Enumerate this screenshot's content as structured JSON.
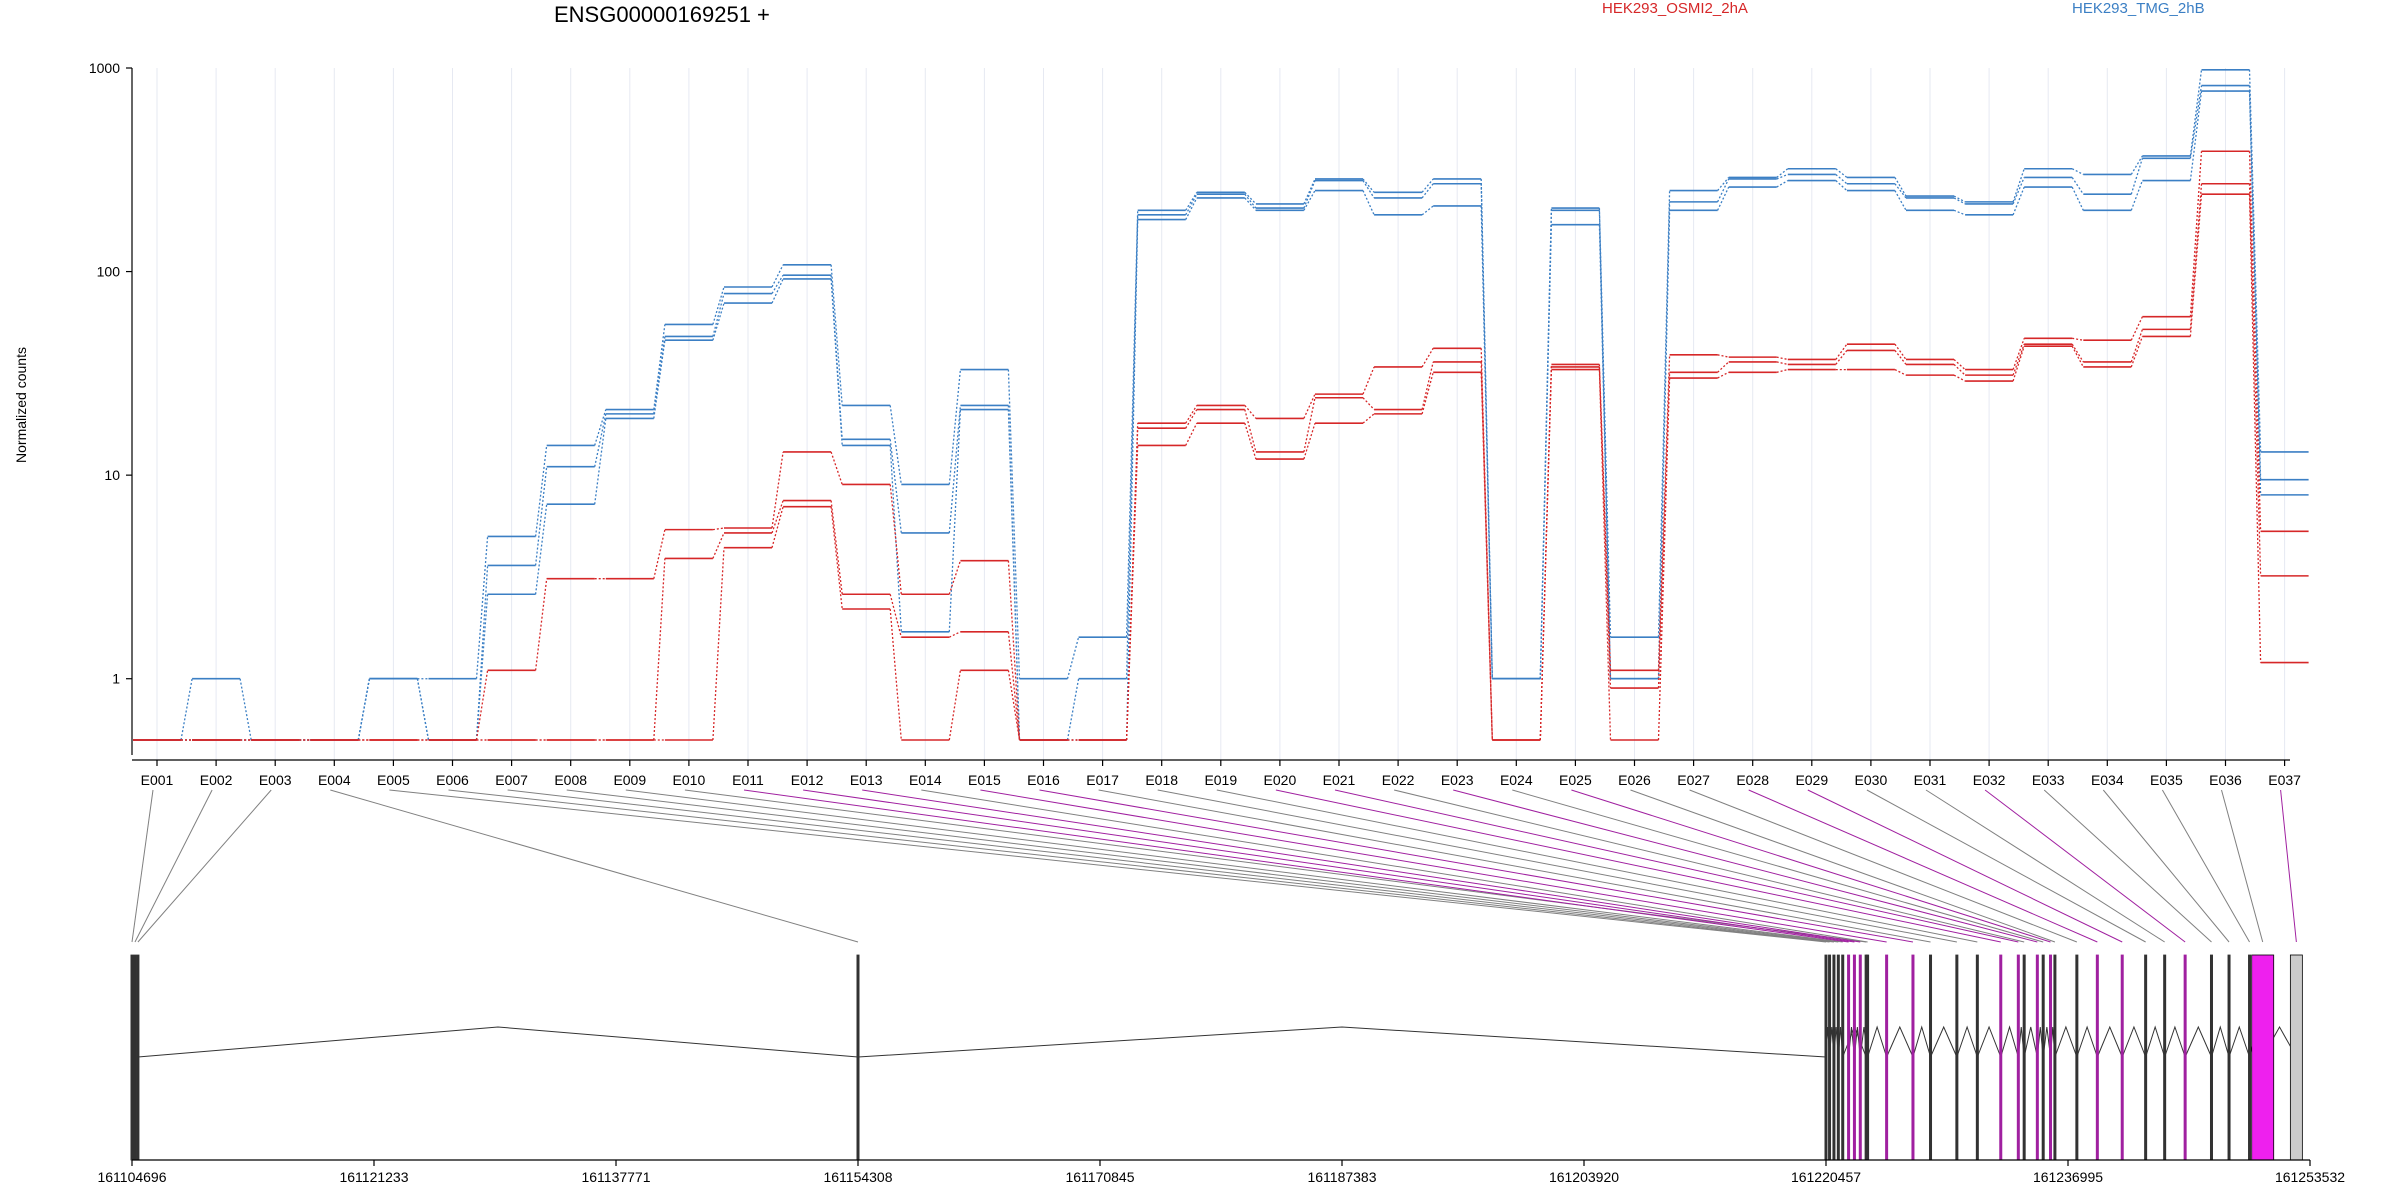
{
  "chart_data": {
    "type": "line",
    "title": "ENSG00000169251 +",
    "ylabel": "Normalized counts",
    "xlabel": "",
    "y_scale": "log",
    "y_ticks": [
      "1000",
      "100",
      "10",
      "1"
    ],
    "y_tick_values": [
      1000,
      100,
      10,
      1
    ],
    "ylim": [
      0.5,
      1000
    ],
    "grid": "vertical dotted lines at each exon",
    "categories": [
      "E001",
      "E002",
      "E003",
      "E004",
      "E005",
      "E006",
      "E007",
      "E008",
      "E009",
      "E010",
      "E011",
      "E012",
      "E013",
      "E014",
      "E015",
      "E016",
      "E017",
      "E018",
      "E019",
      "E020",
      "E021",
      "E022",
      "E023",
      "E024",
      "E025",
      "E026",
      "E027",
      "E028",
      "E029",
      "E030",
      "E031",
      "E032",
      "E033",
      "E034",
      "E035",
      "E036",
      "E037"
    ],
    "legend": [
      {
        "name": "HEK293_OSMI2_2hA",
        "color": "#d62728"
      },
      {
        "name": "HEK293_TMG_2hB",
        "color": "#3b7fc4"
      }
    ],
    "series": [
      {
        "group": "HEK293_TMG_2hB",
        "color": "#3b7fc4",
        "values": [
          0.5,
          1,
          0.5,
          0.5,
          1,
          1,
          5,
          14,
          21,
          55,
          84,
          108,
          22,
          9,
          33,
          1,
          1.6,
          200,
          245,
          215,
          285,
          245,
          285,
          1,
          205,
          1.6,
          250,
          290,
          320,
          290,
          235,
          220,
          320,
          300,
          370,
          980,
          13
        ]
      },
      {
        "group": "HEK293_TMG_2hB",
        "color": "#3b7fc4",
        "values": [
          0.5,
          0.5,
          0.5,
          0.5,
          1,
          0.5,
          3.6,
          11,
          20,
          48,
          78,
          96,
          15,
          5.2,
          22,
          0.5,
          1,
          190,
          240,
          205,
          280,
          230,
          270,
          1,
          200,
          1,
          220,
          285,
          300,
          270,
          230,
          215,
          290,
          240,
          360,
          820,
          9.5
        ]
      },
      {
        "group": "HEK293_TMG_2hB",
        "color": "#3b7fc4",
        "values": [
          0.5,
          0.5,
          0.5,
          0.5,
          1,
          0.5,
          2.6,
          7.2,
          19,
          46,
          70,
          92,
          14,
          1.7,
          21,
          0.5,
          0.5,
          180,
          230,
          200,
          250,
          190,
          210,
          1,
          170,
          1,
          200,
          260,
          280,
          250,
          200,
          190,
          260,
          200,
          280,
          770,
          8
        ]
      },
      {
        "group": "HEK293_OSMI2_2hA",
        "color": "#d62728",
        "values": [
          0.5,
          0.5,
          0.5,
          0.5,
          0.5,
          0.5,
          1.1,
          3.1,
          3.1,
          5.4,
          5.5,
          13,
          9,
          2.6,
          3.8,
          0.5,
          0.5,
          18,
          22,
          19,
          25,
          34,
          42,
          0.5,
          35,
          1.1,
          39,
          38,
          37,
          44,
          37,
          33,
          47,
          46,
          60,
          390,
          5.3
        ]
      },
      {
        "group": "HEK293_OSMI2_2hA",
        "color": "#d62728",
        "values": [
          0.5,
          0.5,
          0.5,
          0.5,
          0.5,
          0.5,
          0.5,
          0.5,
          0.5,
          3.9,
          5.2,
          7.5,
          2.6,
          1.6,
          1.7,
          0.5,
          0.5,
          17,
          21,
          13,
          24,
          21,
          36,
          0.5,
          34,
          0.9,
          32,
          36,
          35,
          41,
          35,
          31,
          44,
          36,
          52,
          270,
          3.2
        ]
      },
      {
        "group": "HEK293_OSMI2_2hA",
        "color": "#d62728",
        "values": [
          0.5,
          0.5,
          0.5,
          0.5,
          0.5,
          0.5,
          0.5,
          0.5,
          0.5,
          0.5,
          4.4,
          7,
          2.2,
          0.5,
          1.1,
          0.5,
          0.5,
          14,
          18,
          12,
          18,
          20,
          32,
          0.5,
          33,
          0.5,
          30,
          32,
          33,
          33,
          31,
          29,
          43,
          34,
          48,
          240,
          1.2
        ]
      }
    ],
    "genomic_axis": {
      "tick_labels": [
        "161104696",
        "161121233",
        "161137771",
        "161154308",
        "161170845",
        "161187383",
        "161203920",
        "161220457",
        "161236995",
        "161253532"
      ],
      "tick_values": [
        161104696,
        161121233,
        161137771,
        161154308,
        161170845,
        161187383,
        161203920,
        161220457,
        161236995,
        161253532
      ]
    },
    "exon_highlight_colors": {
      "normal": "#808080",
      "highlighted": "#a020a0",
      "highlight_fill": "#ee20ee",
      "last_exon_fill": "#cccccc"
    }
  }
}
